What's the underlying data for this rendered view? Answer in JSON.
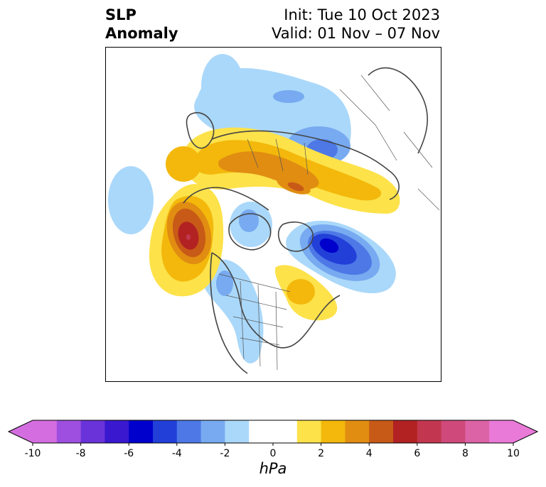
{
  "header": {
    "title_line1": "SLP",
    "title_line2": "Anomaly",
    "init": "Init: Tue 10 Oct 2023",
    "valid": "Valid: 01 Nov – 07 Nov"
  },
  "colorbar": {
    "unit": "hPa",
    "ticks": [
      "-10",
      "-8",
      "-6",
      "-4",
      "-2",
      "0",
      "2",
      "4",
      "6",
      "8",
      "10"
    ],
    "levels": [
      -10,
      -9,
      -8,
      -7,
      -6,
      -5,
      -4,
      -3,
      -2,
      -1,
      1,
      2,
      3,
      4,
      5,
      6,
      7,
      8,
      9,
      10
    ],
    "colors": [
      "#d46ee0",
      "#9e4fe0",
      "#6a33d9",
      "#3a18cf",
      "#0000cc",
      "#2240d8",
      "#4d78e6",
      "#77aaf0",
      "#aad8fa",
      "#ffffff",
      "#fde24a",
      "#f3b80b",
      "#e08d12",
      "#c85a17",
      "#b22222",
      "#c2374f",
      "#cf4a7a",
      "#dc63a6",
      "#e97ad8"
    ],
    "extend": "both"
  },
  "anomalies": [
    {
      "name": "aleutian-gulf-alaska-high",
      "sign": "positive",
      "peak_hpa": 6
    },
    {
      "name": "north-atlantic-low",
      "sign": "negative",
      "peak_hpa": -5
    },
    {
      "name": "siberian-arctic-high-band",
      "sign": "positive",
      "peak_hpa": 4
    },
    {
      "name": "east-siberia-low",
      "sign": "negative",
      "peak_hpa": -3
    },
    {
      "name": "eastern-canada-high",
      "sign": "positive",
      "peak_hpa": 2
    },
    {
      "name": "western-north-america-low",
      "sign": "negative",
      "peak_hpa": -3
    }
  ]
}
